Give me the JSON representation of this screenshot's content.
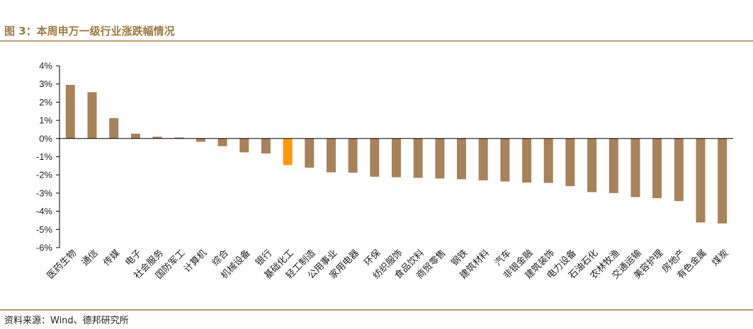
{
  "figure": {
    "title": "图 3：本周申万一级行业涨跌幅情况",
    "source": "资料来源：Wind、德邦研究所"
  },
  "colors": {
    "bar": "#a8825a",
    "highlight": "#ff9900",
    "axis": "#000000",
    "rule": "#b79a6b",
    "title": "#9b7a43"
  },
  "chart_data": {
    "type": "bar",
    "title": "",
    "xlabel": "",
    "ylabel": "",
    "ylim": [
      -6,
      4
    ],
    "yticks": [
      4,
      3,
      2,
      1,
      0,
      -1,
      -2,
      -3,
      -4,
      -5,
      -6
    ],
    "ytick_labels": [
      "4%",
      "3%",
      "2%",
      "1%",
      "0%",
      "-1%",
      "-2%",
      "-3%",
      "-4%",
      "-5%",
      "-6%"
    ],
    "grid": false,
    "legend": "none",
    "highlight_category": "基础化工",
    "categories": [
      "医药生物",
      "通信",
      "传媒",
      "电子",
      "社会服务",
      "国防军工",
      "计算机",
      "综合",
      "机械设备",
      "银行",
      "基础化工",
      "轻工制造",
      "公用事业",
      "家用电器",
      "环保",
      "纺织服饰",
      "食品饮料",
      "商贸零售",
      "钢铁",
      "建筑材料",
      "汽车",
      "非银金融",
      "建筑装饰",
      "电力设备",
      "石油石化",
      "农林牧渔",
      "交通运输",
      "美容护理",
      "房地产",
      "有色金属",
      "煤炭"
    ],
    "values": [
      2.95,
      2.55,
      1.12,
      0.27,
      0.1,
      0.06,
      -0.18,
      -0.42,
      -0.76,
      -0.82,
      -1.46,
      -1.6,
      -1.86,
      -1.88,
      -2.1,
      -2.13,
      -2.16,
      -2.2,
      -2.24,
      -2.3,
      -2.36,
      -2.42,
      -2.44,
      -2.62,
      -2.95,
      -3.0,
      -3.22,
      -3.28,
      -3.44,
      -4.62,
      -4.67
    ]
  }
}
